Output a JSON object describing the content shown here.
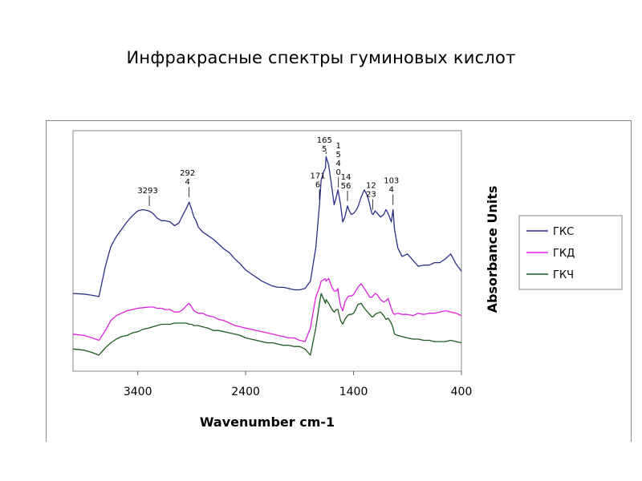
{
  "slide": {
    "title": "Инфракрасные спектры гуминовых кислот"
  },
  "chart_data": {
    "type": "line",
    "xlabel": "Wavenumber cm-1",
    "ylabel": "Absorbance Units",
    "xlim": [
      4000,
      400
    ],
    "x_reversed": true,
    "xticks": [
      3400,
      2400,
      1400,
      400
    ],
    "grid": false,
    "legend_position": "right",
    "colors": {
      "ГКС": "#2a2f88",
      "ГКД": "#e020e0",
      "ГКЧ": "#1e5a1e"
    },
    "series": [
      {
        "name": "ГКС",
        "x": [
          4000,
          3900,
          3820,
          3760,
          3700,
          3650,
          3600,
          3550,
          3500,
          3450,
          3400,
          3350,
          3300,
          3260,
          3220,
          3180,
          3150,
          3100,
          3060,
          3020,
          2980,
          2950,
          2924,
          2900,
          2880,
          2860,
          2840,
          2800,
          2750,
          2700,
          2650,
          2600,
          2550,
          2500,
          2450,
          2400,
          2350,
          2300,
          2250,
          2200,
          2150,
          2100,
          2050,
          2000,
          1950,
          1900,
          1850,
          1800,
          1750,
          1716,
          1700,
          1680,
          1660,
          1655,
          1630,
          1600,
          1580,
          1560,
          1545,
          1540,
          1520,
          1500,
          1480,
          1456,
          1440,
          1420,
          1400,
          1380,
          1360,
          1330,
          1300,
          1270,
          1250,
          1230,
          1220,
          1200,
          1180,
          1150,
          1120,
          1100,
          1080,
          1050,
          1034,
          1020,
          990,
          950,
          900,
          850,
          800,
          750,
          700,
          650,
          600,
          550,
          500,
          450,
          400
        ],
        "y": [
          0.08,
          0.075,
          0.065,
          0.055,
          0.3,
          0.46,
          0.54,
          0.6,
          0.66,
          0.71,
          0.75,
          0.76,
          0.75,
          0.73,
          0.69,
          0.67,
          0.67,
          0.66,
          0.63,
          0.65,
          0.72,
          0.77,
          0.82,
          0.76,
          0.7,
          0.67,
          0.62,
          0.58,
          0.55,
          0.52,
          0.48,
          0.44,
          0.41,
          0.36,
          0.32,
          0.27,
          0.24,
          0.21,
          0.18,
          0.16,
          0.14,
          0.13,
          0.13,
          0.12,
          0.11,
          0.11,
          0.12,
          0.18,
          0.45,
          0.8,
          1.0,
          1.06,
          1.1,
          1.19,
          1.12,
          0.93,
          0.8,
          0.86,
          0.92,
          0.9,
          0.8,
          0.66,
          0.7,
          0.79,
          0.75,
          0.72,
          0.73,
          0.75,
          0.78,
          0.86,
          0.92,
          0.87,
          0.8,
          0.73,
          0.72,
          0.75,
          0.73,
          0.7,
          0.72,
          0.76,
          0.73,
          0.66,
          0.76,
          0.6,
          0.45,
          0.38,
          0.4,
          0.35,
          0.3,
          0.31,
          0.31,
          0.33,
          0.33,
          0.36,
          0.4,
          0.32,
          0.26
        ]
      },
      {
        "name": "ГКД",
        "x": [
          4000,
          3900,
          3820,
          3760,
          3700,
          3650,
          3600,
          3550,
          3500,
          3450,
          3400,
          3350,
          3300,
          3260,
          3220,
          3180,
          3150,
          3100,
          3060,
          3020,
          2980,
          2950,
          2924,
          2900,
          2880,
          2860,
          2840,
          2800,
          2750,
          2700,
          2650,
          2600,
          2550,
          2500,
          2450,
          2400,
          2350,
          2300,
          2250,
          2200,
          2150,
          2100,
          2050,
          2000,
          1950,
          1900,
          1850,
          1800,
          1750,
          1716,
          1700,
          1680,
          1660,
          1655,
          1630,
          1600,
          1580,
          1560,
          1545,
          1540,
          1520,
          1500,
          1480,
          1456,
          1440,
          1420,
          1400,
          1380,
          1360,
          1330,
          1300,
          1270,
          1250,
          1230,
          1220,
          1200,
          1180,
          1150,
          1120,
          1100,
          1080,
          1050,
          1034,
          1020,
          990,
          950,
          900,
          850,
          800,
          750,
          700,
          650,
          600,
          550,
          500,
          450,
          400
        ],
        "y": [
          -0.25,
          -0.26,
          -0.28,
          -0.3,
          -0.22,
          -0.14,
          -0.1,
          -0.08,
          -0.06,
          -0.05,
          -0.04,
          -0.035,
          -0.03,
          -0.03,
          -0.04,
          -0.04,
          -0.05,
          -0.05,
          -0.07,
          -0.07,
          -0.05,
          -0.02,
          0.0,
          -0.03,
          -0.06,
          -0.07,
          -0.08,
          -0.08,
          -0.1,
          -0.11,
          -0.13,
          -0.14,
          -0.16,
          -0.18,
          -0.19,
          -0.2,
          -0.21,
          -0.22,
          -0.23,
          -0.24,
          -0.25,
          -0.26,
          -0.27,
          -0.28,
          -0.28,
          -0.3,
          -0.31,
          -0.2,
          0.05,
          0.13,
          0.18,
          0.19,
          0.2,
          0.18,
          0.2,
          0.13,
          0.1,
          0.1,
          0.12,
          0.08,
          -0.02,
          -0.06,
          0.01,
          0.05,
          0.06,
          0.06,
          0.07,
          0.1,
          0.13,
          0.16,
          0.12,
          0.08,
          0.05,
          0.05,
          0.06,
          0.08,
          0.07,
          0.03,
          0.01,
          0.02,
          0.04,
          -0.04,
          -0.08,
          -0.09,
          -0.08,
          -0.09,
          -0.09,
          -0.1,
          -0.08,
          -0.09,
          -0.08,
          -0.08,
          -0.07,
          -0.06,
          -0.07,
          -0.08,
          -0.1
        ]
      },
      {
        "name": "ГКЧ",
        "x": [
          4000,
          3900,
          3820,
          3760,
          3700,
          3650,
          3600,
          3550,
          3500,
          3450,
          3400,
          3350,
          3300,
          3260,
          3220,
          3180,
          3150,
          3100,
          3060,
          3020,
          2980,
          2950,
          2924,
          2900,
          2880,
          2860,
          2840,
          2800,
          2750,
          2700,
          2650,
          2600,
          2550,
          2500,
          2450,
          2400,
          2350,
          2300,
          2250,
          2200,
          2150,
          2100,
          2050,
          2000,
          1950,
          1900,
          1850,
          1800,
          1750,
          1716,
          1700,
          1680,
          1660,
          1655,
          1630,
          1600,
          1580,
          1560,
          1545,
          1540,
          1520,
          1500,
          1480,
          1456,
          1440,
          1420,
          1400,
          1380,
          1360,
          1330,
          1300,
          1270,
          1250,
          1230,
          1220,
          1200,
          1180,
          1150,
          1120,
          1100,
          1080,
          1050,
          1034,
          1020,
          990,
          950,
          900,
          850,
          800,
          750,
          700,
          650,
          600,
          550,
          500,
          450,
          400
        ],
        "y": [
          -0.37,
          -0.38,
          -0.4,
          -0.42,
          -0.36,
          -0.32,
          -0.29,
          -0.27,
          -0.26,
          -0.24,
          -0.23,
          -0.21,
          -0.2,
          -0.19,
          -0.18,
          -0.17,
          -0.17,
          -0.17,
          -0.16,
          -0.16,
          -0.16,
          -0.16,
          -0.17,
          -0.17,
          -0.18,
          -0.18,
          -0.18,
          -0.19,
          -0.2,
          -0.22,
          -0.22,
          -0.23,
          -0.24,
          -0.25,
          -0.26,
          -0.28,
          -0.29,
          -0.3,
          -0.31,
          -0.32,
          -0.32,
          -0.33,
          -0.34,
          -0.34,
          -0.35,
          -0.35,
          -0.37,
          -0.42,
          -0.2,
          0.0,
          0.08,
          0.04,
          0.0,
          0.03,
          0.0,
          -0.05,
          -0.07,
          -0.05,
          -0.05,
          -0.07,
          -0.14,
          -0.17,
          -0.13,
          -0.1,
          -0.09,
          -0.09,
          -0.08,
          -0.05,
          -0.01,
          0.0,
          -0.04,
          -0.07,
          -0.09,
          -0.11,
          -0.11,
          -0.09,
          -0.08,
          -0.07,
          -0.1,
          -0.13,
          -0.12,
          -0.16,
          -0.2,
          -0.25,
          -0.26,
          -0.27,
          -0.28,
          -0.29,
          -0.29,
          -0.3,
          -0.3,
          -0.31,
          -0.31,
          -0.31,
          -0.3,
          -0.31,
          -0.32
        ]
      }
    ],
    "annotations": [
      {
        "lines": [
          "3293"
        ],
        "x": 3293,
        "series": "ГКС"
      },
      {
        "lines": [
          "292",
          "4"
        ],
        "x": 2924,
        "series": "ГКС"
      },
      {
        "lines": [
          "171",
          "6"
        ],
        "x": 1716,
        "series": "ГКС"
      },
      {
        "lines": [
          "165",
          "5"
        ],
        "x": 1655,
        "series": "ГКС"
      },
      {
        "lines": [
          "1",
          "5",
          "4",
          "0"
        ],
        "x": 1540,
        "series": "ГКС"
      },
      {
        "lines": [
          "14",
          "56"
        ],
        "x": 1456,
        "series": "ГКС"
      },
      {
        "lines": [
          "12",
          "23"
        ],
        "x": 1223,
        "series": "ГКС"
      },
      {
        "lines": [
          "103",
          "4"
        ],
        "x": 1034,
        "series": "ГКС"
      }
    ]
  }
}
